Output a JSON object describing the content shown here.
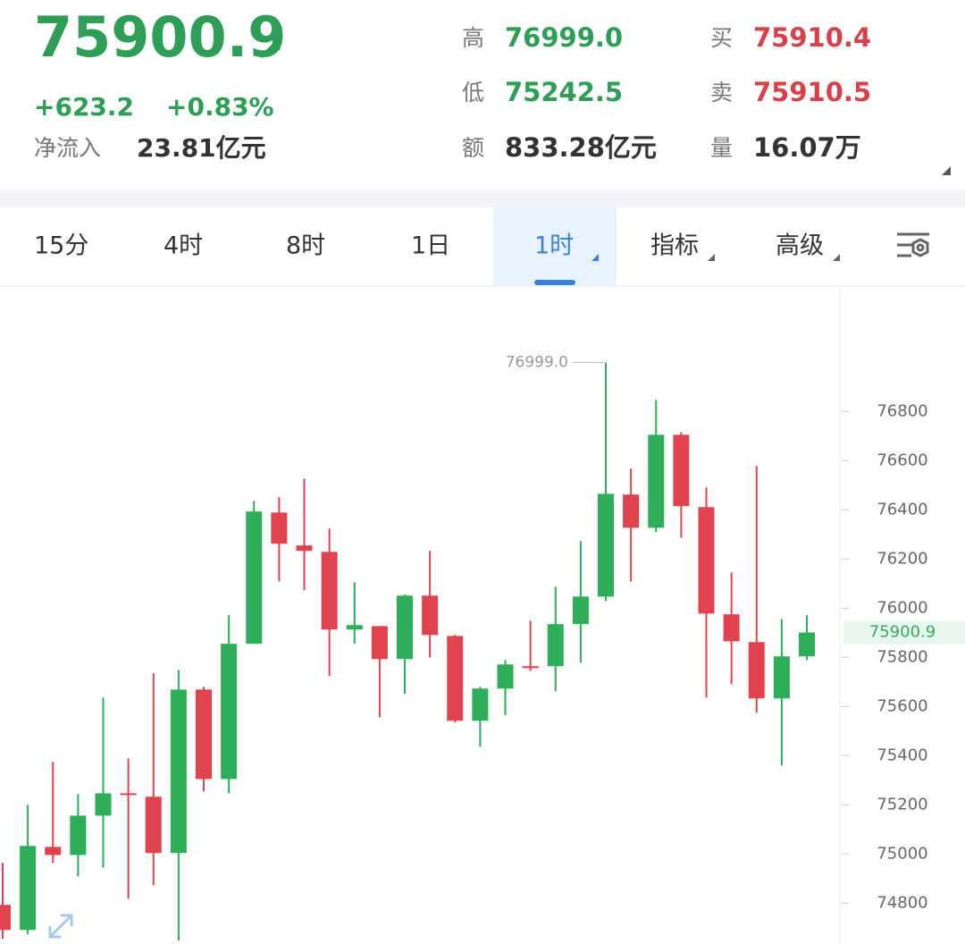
{
  "header": {
    "price": "75900.9",
    "change": "+623.2",
    "change_pct": "+0.83%",
    "net_inflow_label": "净流入",
    "net_inflow": "23.81亿元",
    "stats": [
      {
        "label": "高",
        "value": "76999.0",
        "tone": "up"
      },
      {
        "label": "买",
        "value": "75910.4",
        "tone": "down"
      },
      {
        "label": "低",
        "value": "75242.5",
        "tone": "up"
      },
      {
        "label": "卖",
        "value": "75910.5",
        "tone": "down"
      },
      {
        "label": "额",
        "value": "833.28亿元",
        "tone": "plain"
      },
      {
        "label": "量",
        "value": "16.07万",
        "tone": "plain"
      }
    ]
  },
  "tabs": {
    "items": [
      "15分",
      "4时",
      "8时",
      "1日",
      "1时",
      "指标",
      "高级"
    ],
    "selected": 4
  },
  "chart_data": {
    "type": "candlestick",
    "up_color": "#2fae5a",
    "down_color": "#e0434e",
    "high_label": "76999.0",
    "last_label": "75900.9",
    "open": [
      74793,
      74691,
      75029,
      74996,
      75156,
      75247,
      75233,
      75004,
      75669,
      75305,
      75855,
      76389,
      76255,
      76229,
      75913,
      75927,
      75793,
      76051,
      75887,
      75542,
      75673,
      75764,
      75764,
      75935,
      76047,
      76462,
      76327,
      76705,
      76411,
      75975,
      75862,
      75633,
      75804
    ],
    "high": [
      74964,
      75200,
      75375,
      75244,
      75636,
      75389,
      75735,
      75749,
      75680,
      75971,
      76436,
      76451,
      76527,
      76324,
      76105,
      75927,
      76055,
      76233,
      75891,
      75680,
      75789,
      75949,
      76087,
      76273,
      76999,
      76567,
      76847,
      76716,
      76491,
      76145,
      76578,
      75956,
      75971
    ],
    "low": [
      74655,
      74673,
      74964,
      74909,
      74945,
      74818,
      74873,
      74647,
      75255,
      75247,
      75855,
      76109,
      76073,
      75724,
      75855,
      75556,
      75651,
      75800,
      75535,
      75436,
      75564,
      75745,
      75662,
      75778,
      76029,
      76109,
      76309,
      76287,
      75636,
      75691,
      75575,
      75360,
      75789
    ],
    "close": [
      74691,
      75033,
      74996,
      75156,
      75247,
      75240,
      75004,
      75669,
      75305,
      75855,
      76393,
      76262,
      76233,
      75913,
      75931,
      75793,
      76051,
      75891,
      75542,
      75673,
      75771,
      75756,
      75935,
      76047,
      76465,
      76327,
      76705,
      76415,
      75978,
      75865,
      75633,
      75804,
      75900.9
    ],
    "ylim": [
      74634,
      77310
    ],
    "yticks": [
      74800,
      75000,
      75200,
      75400,
      75600,
      75800,
      76000,
      76200,
      76400,
      76600,
      76800
    ]
  }
}
